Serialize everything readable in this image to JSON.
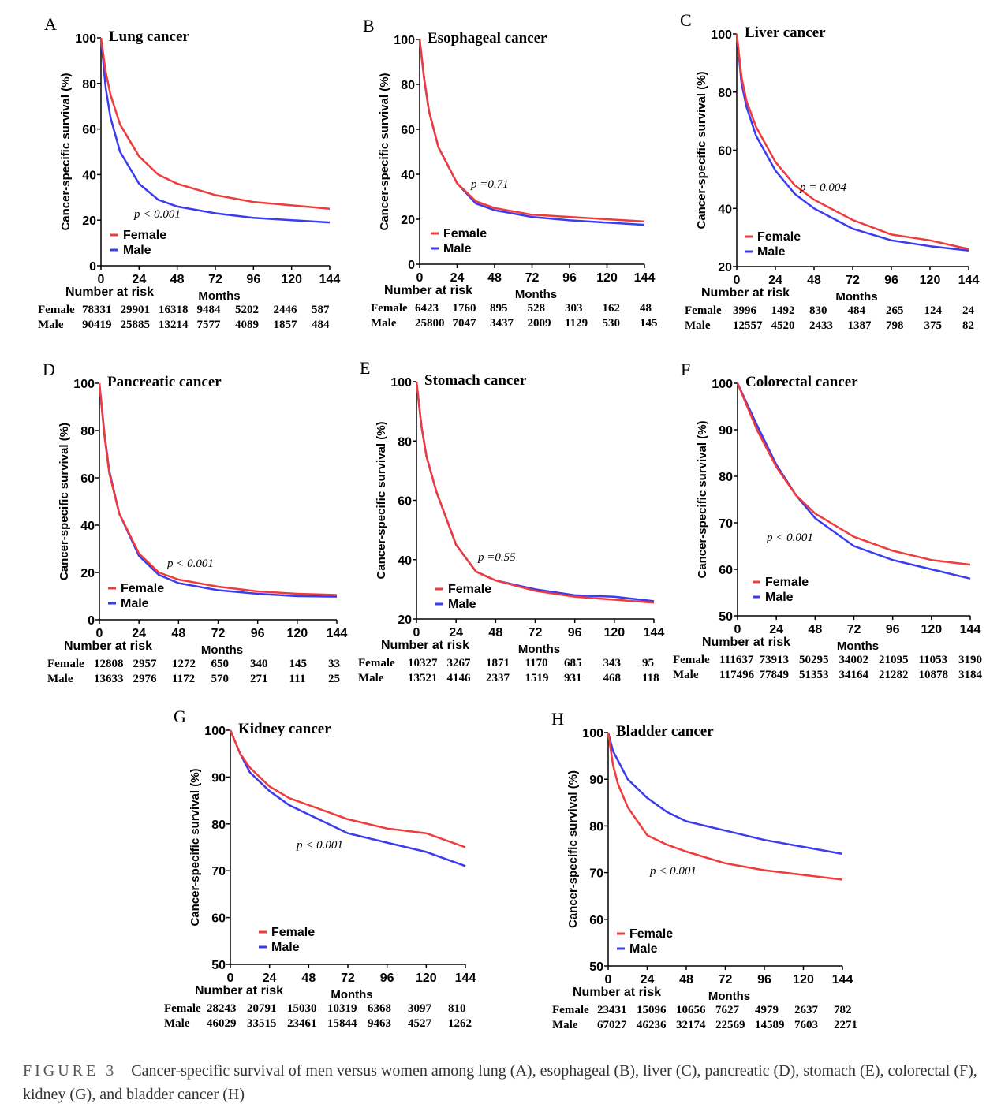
{
  "colors": {
    "female": "#ef3b3b",
    "male": "#3b3bef"
  },
  "caption": {
    "label": "FIGURE 3",
    "text": "Cancer-specific survival of men versus women among lung (A), esophageal (B), liver (C), pancreatic (D), stomach (E), colorectal (F), kidney (G), and bladder cancer (H)"
  },
  "chart_data": [
    {
      "type": "line",
      "panel": "A",
      "title": "Lung cancer",
      "ylabel": "Cancer-specific survival (%)",
      "xlabel": "Months",
      "ylim": [
        0,
        100
      ],
      "xlim": [
        0,
        144
      ],
      "yticks": [
        0,
        20,
        40,
        60,
        80,
        100
      ],
      "xticks": [
        0,
        24,
        48,
        72,
        96,
        120,
        144
      ],
      "annotation": "p < 0.001",
      "risk_label": "Number at risk",
      "x": [
        0,
        3,
        6,
        12,
        24,
        36,
        48,
        72,
        96,
        120,
        144
      ],
      "series": [
        {
          "name": "Female",
          "values": [
            100,
            85,
            75,
            62,
            48,
            40,
            36,
            31,
            28,
            26.5,
            25
          ]
        },
        {
          "name": "Male",
          "values": [
            100,
            78,
            65,
            50,
            36,
            29,
            26,
            23,
            21,
            20,
            19
          ]
        }
      ],
      "risk": [
        {
          "name": "Female",
          "values": [
            78331,
            29901,
            16318,
            9484,
            5202,
            2446,
            587
          ]
        },
        {
          "name": "Male",
          "values": [
            90419,
            25885,
            13214,
            7577,
            4089,
            1857,
            484
          ]
        }
      ]
    },
    {
      "type": "line",
      "panel": "B",
      "title": "Esophageal cancer",
      "ylabel": "Cancer-specific survival (%)",
      "xlabel": "Months",
      "ylim": [
        0,
        100
      ],
      "xlim": [
        0,
        144
      ],
      "yticks": [
        0,
        20,
        40,
        60,
        80,
        100
      ],
      "xticks": [
        0,
        24,
        48,
        72,
        96,
        120,
        144
      ],
      "annotation": "p =0.71",
      "risk_label": "Number at risk",
      "x": [
        0,
        3,
        6,
        12,
        24,
        36,
        48,
        72,
        96,
        120,
        144
      ],
      "series": [
        {
          "name": "Female",
          "values": [
            100,
            82,
            68,
            52,
            36,
            28,
            25,
            22,
            21,
            20,
            19
          ]
        },
        {
          "name": "Male",
          "values": [
            100,
            82,
            68,
            52,
            36,
            27,
            24,
            21,
            19.5,
            18.5,
            17.5
          ]
        }
      ],
      "risk": [
        {
          "name": "Female",
          "values": [
            6423,
            1760,
            895,
            528,
            303,
            162,
            48
          ]
        },
        {
          "name": "Male",
          "values": [
            25800,
            7047,
            3437,
            2009,
            1129,
            530,
            145
          ]
        }
      ]
    },
    {
      "type": "line",
      "panel": "C",
      "title": "Liver cancer",
      "ylabel": "Cancer-specific survival (%)",
      "xlabel": "Months",
      "ylim": [
        20,
        100
      ],
      "xlim": [
        0,
        144
      ],
      "yticks": [
        20,
        40,
        60,
        80,
        100
      ],
      "xticks": [
        0,
        24,
        48,
        72,
        96,
        120,
        144
      ],
      "annotation": "p = 0.004",
      "risk_label": "Number at risk",
      "x": [
        0,
        3,
        6,
        12,
        24,
        36,
        48,
        72,
        96,
        120,
        144
      ],
      "series": [
        {
          "name": "Female",
          "values": [
            100,
            85,
            77,
            68,
            56,
            48,
            43,
            36,
            31,
            29,
            26
          ]
        },
        {
          "name": "Male",
          "values": [
            100,
            83,
            75,
            65,
            53,
            45,
            40,
            33,
            29,
            27,
            25.5
          ]
        }
      ],
      "risk": [
        {
          "name": "Female",
          "values": [
            3996,
            1492,
            830,
            484,
            265,
            124,
            24
          ]
        },
        {
          "name": "Male",
          "values": [
            12557,
            4520,
            2433,
            1387,
            798,
            375,
            82
          ]
        }
      ]
    },
    {
      "type": "line",
      "panel": "D",
      "title": "Pancreatic cancer",
      "ylabel": "Cancer-specific survival (%)",
      "xlabel": "Months",
      "ylim": [
        0,
        100
      ],
      "xlim": [
        0,
        144
      ],
      "yticks": [
        0,
        20,
        40,
        60,
        80,
        100
      ],
      "xticks": [
        0,
        24,
        48,
        72,
        96,
        120,
        144
      ],
      "annotation": "p < 0.001",
      "risk_label": "Number at risk",
      "x": [
        0,
        3,
        6,
        12,
        24,
        36,
        48,
        72,
        96,
        120,
        144
      ],
      "series": [
        {
          "name": "Female",
          "values": [
            100,
            78,
            62,
            45,
            28,
            20,
            17,
            14,
            12,
            11,
            10.5
          ]
        },
        {
          "name": "Male",
          "values": [
            100,
            79,
            63,
            45,
            27,
            19,
            15.5,
            12.5,
            11,
            10,
            9.8
          ]
        }
      ],
      "risk": [
        {
          "name": "Female",
          "values": [
            12808,
            2957,
            1272,
            650,
            340,
            145,
            33
          ]
        },
        {
          "name": "Male",
          "values": [
            13633,
            2976,
            1172,
            570,
            271,
            111,
            25
          ]
        }
      ]
    },
    {
      "type": "line",
      "panel": "E",
      "title": "Stomach cancer",
      "ylabel": "Cancer-specific survival (%)",
      "xlabel": "Months",
      "ylim": [
        20,
        100
      ],
      "xlim": [
        0,
        144
      ],
      "yticks": [
        20,
        40,
        60,
        80,
        100
      ],
      "xticks": [
        0,
        24,
        48,
        72,
        96,
        120,
        144
      ],
      "annotation": "p =0.55",
      "risk_label": "Number at risk",
      "x": [
        0,
        3,
        6,
        12,
        24,
        36,
        48,
        72,
        96,
        120,
        144
      ],
      "series": [
        {
          "name": "Female",
          "values": [
            100,
            85,
            75,
            63,
            45,
            36,
            33,
            29.5,
            27.5,
            26.5,
            25.5
          ]
        },
        {
          "name": "Male",
          "values": [
            100,
            85,
            75,
            63,
            45,
            36,
            33,
            30,
            28,
            27.5,
            26
          ]
        }
      ],
      "risk": [
        {
          "name": "Female",
          "values": [
            10327,
            3267,
            1871,
            1170,
            685,
            343,
            95
          ]
        },
        {
          "name": "Male",
          "values": [
            13521,
            4146,
            2337,
            1519,
            931,
            468,
            118
          ]
        }
      ]
    },
    {
      "type": "line",
      "panel": "F",
      "title": "Colorectal cancer",
      "ylabel": "Cancer-specific survival (%)",
      "xlabel": "Months",
      "ylim": [
        50,
        100
      ],
      "xlim": [
        0,
        144
      ],
      "yticks": [
        50,
        60,
        70,
        80,
        90,
        100
      ],
      "xticks": [
        0,
        24,
        48,
        72,
        96,
        120,
        144
      ],
      "annotation": "p < 0.001",
      "risk_label": "Number at risk",
      "x": [
        0,
        6,
        12,
        24,
        36,
        48,
        72,
        96,
        120,
        144
      ],
      "series": [
        {
          "name": "Female",
          "values": [
            100,
            95,
            90,
            82,
            76,
            72,
            67,
            64,
            62,
            61
          ]
        },
        {
          "name": "Male",
          "values": [
            100,
            95.5,
            91,
            82.5,
            76,
            71,
            65,
            62,
            60,
            58
          ]
        }
      ],
      "risk": [
        {
          "name": "Female",
          "values": [
            111637,
            73913,
            50295,
            34002,
            21095,
            11053,
            3190
          ]
        },
        {
          "name": "Male",
          "values": [
            117496,
            77849,
            51353,
            34164,
            21282,
            10878,
            3184
          ]
        }
      ]
    },
    {
      "type": "line",
      "panel": "G",
      "title": "Kidney cancer",
      "ylabel": "Cancer-specific survival (%)",
      "xlabel": "Months",
      "ylim": [
        50,
        100
      ],
      "xlim": [
        0,
        144
      ],
      "yticks": [
        50,
        60,
        70,
        80,
        90,
        100
      ],
      "xticks": [
        0,
        24,
        48,
        72,
        96,
        120,
        144
      ],
      "annotation": "p < 0.001",
      "risk_label": "Number at risk",
      "x": [
        0,
        6,
        12,
        24,
        36,
        48,
        72,
        96,
        120,
        144
      ],
      "series": [
        {
          "name": "Female",
          "values": [
            100,
            95,
            92,
            88,
            85.5,
            84,
            81,
            79,
            78,
            75
          ]
        },
        {
          "name": "Male",
          "values": [
            100,
            95,
            91,
            87,
            84,
            82,
            78,
            76,
            74,
            71
          ]
        }
      ],
      "risk": [
        {
          "name": "Female",
          "values": [
            28243,
            20791,
            15030,
            10319,
            6368,
            3097,
            810
          ]
        },
        {
          "name": "Male",
          "values": [
            46029,
            33515,
            23461,
            15844,
            9463,
            4527,
            1262
          ]
        }
      ]
    },
    {
      "type": "line",
      "panel": "H",
      "title": "Bladder cancer",
      "ylabel": "Cancer-specific survival (%)",
      "xlabel": "Months",
      "ylim": [
        50,
        100
      ],
      "xlim": [
        0,
        144
      ],
      "yticks": [
        50,
        60,
        70,
        80,
        90,
        100
      ],
      "xticks": [
        0,
        24,
        48,
        72,
        96,
        120,
        144
      ],
      "annotation": "p < 0.001",
      "risk_label": "Number at risk",
      "x": [
        0,
        3,
        6,
        12,
        24,
        36,
        48,
        72,
        96,
        120,
        144
      ],
      "series": [
        {
          "name": "Female",
          "values": [
            100,
            93,
            89,
            84,
            78,
            76,
            74.5,
            72,
            70.5,
            69.5,
            68.5
          ]
        },
        {
          "name": "Male",
          "values": [
            100,
            96,
            94,
            90,
            86,
            83,
            81,
            79,
            77,
            75.5,
            74
          ]
        }
      ],
      "risk": [
        {
          "name": "Female",
          "values": [
            23431,
            15096,
            10656,
            7627,
            4979,
            2637,
            782
          ]
        },
        {
          "name": "Male",
          "values": [
            67027,
            46236,
            32174,
            22569,
            14589,
            7603,
            2271
          ]
        }
      ]
    }
  ]
}
